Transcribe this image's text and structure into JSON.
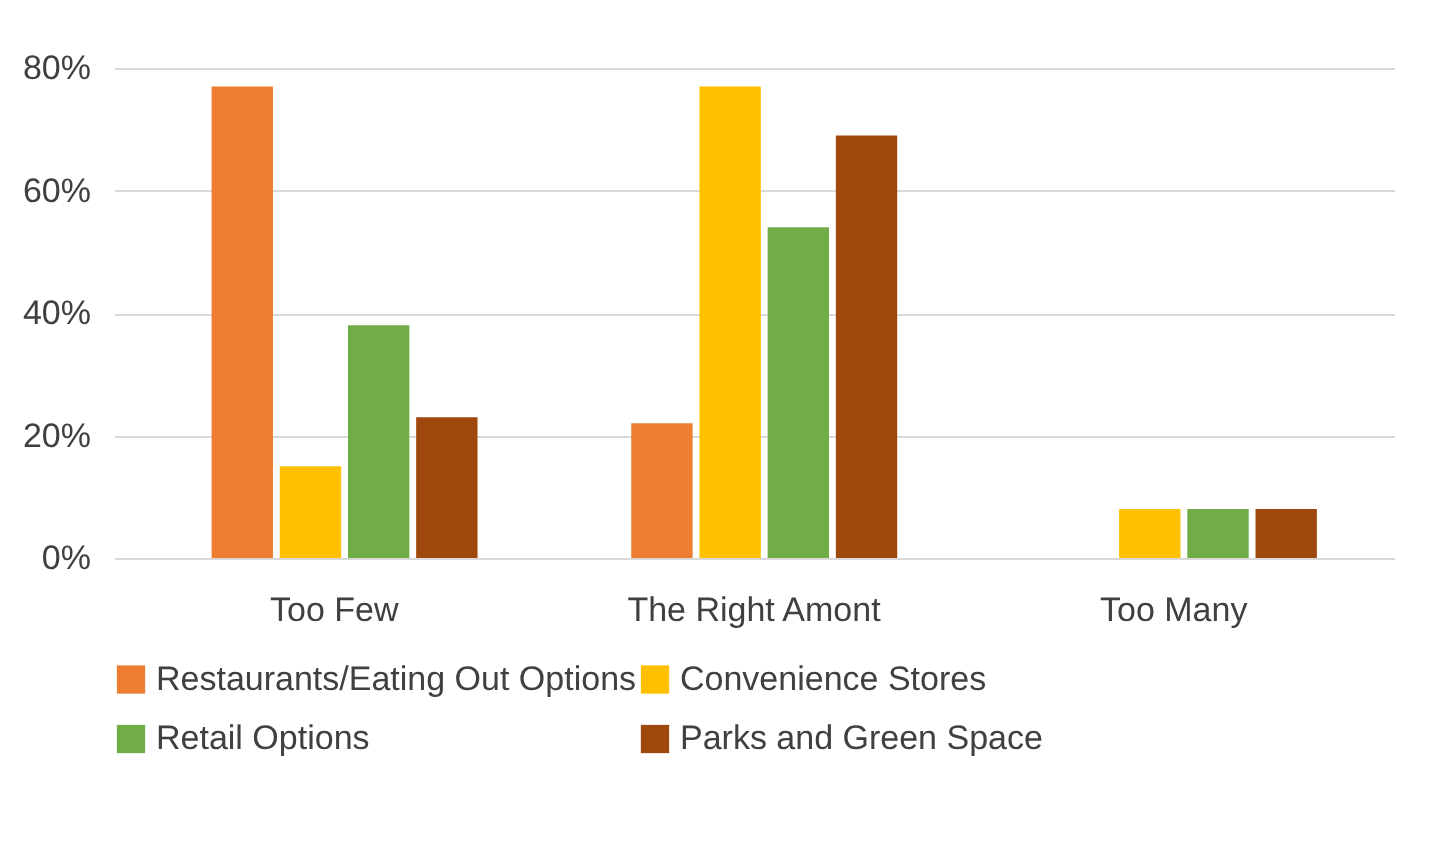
{
  "chart_data": {
    "type": "bar",
    "categories": [
      "Too Few",
      "The Right Amont",
      "Too Many"
    ],
    "series": [
      {
        "name": "Restaurants/Eating Out Options",
        "color": "#ed7d31",
        "values": [
          77,
          22,
          0
        ]
      },
      {
        "name": "Convenience Stores",
        "color": "#ffc000",
        "values": [
          15,
          77,
          8
        ]
      },
      {
        "name": "Retail Options",
        "color": "#70ad47",
        "values": [
          38,
          54,
          8
        ]
      },
      {
        "name": "Parks and Green Space",
        "color": "#9e480e",
        "values": [
          23,
          69,
          8
        ]
      }
    ],
    "ylim": [
      0,
      80
    ],
    "yticks": [
      {
        "value": 0,
        "label": "0%"
      },
      {
        "value": 20,
        "label": "20%"
      },
      {
        "value": 40,
        "label": "40%"
      },
      {
        "value": 60,
        "label": "60%"
      },
      {
        "value": 80,
        "label": "80%"
      }
    ],
    "grid": "y",
    "legend": "bottom"
  }
}
